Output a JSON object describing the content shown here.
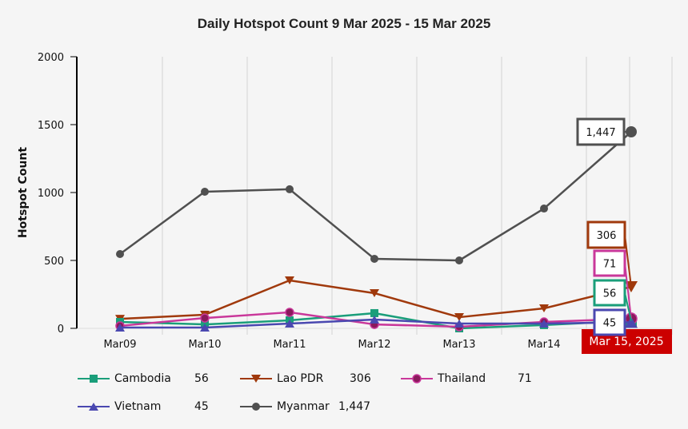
{
  "chart_data": {
    "type": "line",
    "title": "Daily Hotspot Count 9 Mar 2025 - 15 Mar 2025",
    "xlabel": "",
    "ylabel": "Hotspot Count",
    "ylim": [
      0,
      2000
    ],
    "yticks": [
      "0",
      "500",
      "1000",
      "1500",
      "2000"
    ],
    "ytick_values": [
      0,
      500,
      1000,
      1500,
      2000
    ],
    "categories": [
      "Mar09",
      "Mar10",
      "Mar11",
      "Mar12",
      "Mar13",
      "Mar14",
      "Mar 15, 2025"
    ],
    "x_tick_labels": [
      "Mar09",
      "Mar10",
      "Mar11",
      "Mar12",
      "Mar13",
      "Mar14"
    ],
    "highlight_label": "Mar 15, 2025",
    "grid": true,
    "legend_position": "bottom",
    "series": [
      {
        "name": "Cambodia",
        "color": "#1a9e7a",
        "marker": "square",
        "values": [
          47,
          29,
          59,
          112,
          0,
          24,
          56
        ],
        "latest": "56",
        "tooltip": "56"
      },
      {
        "name": "Lao PDR",
        "color": "#a0390c",
        "marker": "triangle-down",
        "values": [
          70,
          100,
          353,
          259,
          82,
          147,
          306
        ],
        "latest": "306",
        "tooltip": "306"
      },
      {
        "name": "Thailand",
        "color": "#c9379a",
        "marker": "circle",
        "values": [
          18,
          76,
          118,
          29,
          12,
          47,
          71
        ],
        "latest": "71",
        "tooltip": "71"
      },
      {
        "name": "Vietnam",
        "color": "#4a48b0",
        "marker": "triangle-up",
        "values": [
          6,
          6,
          35,
          65,
          35,
          35,
          45
        ],
        "latest": "45",
        "tooltip": "45"
      },
      {
        "name": "Myanmar",
        "color": "#505050",
        "marker": "circle",
        "values": [
          547,
          1006,
          1024,
          512,
          500,
          882,
          1447
        ],
        "latest": "1,447",
        "tooltip": "1,447"
      }
    ],
    "highlight_color": "#cc0000"
  }
}
